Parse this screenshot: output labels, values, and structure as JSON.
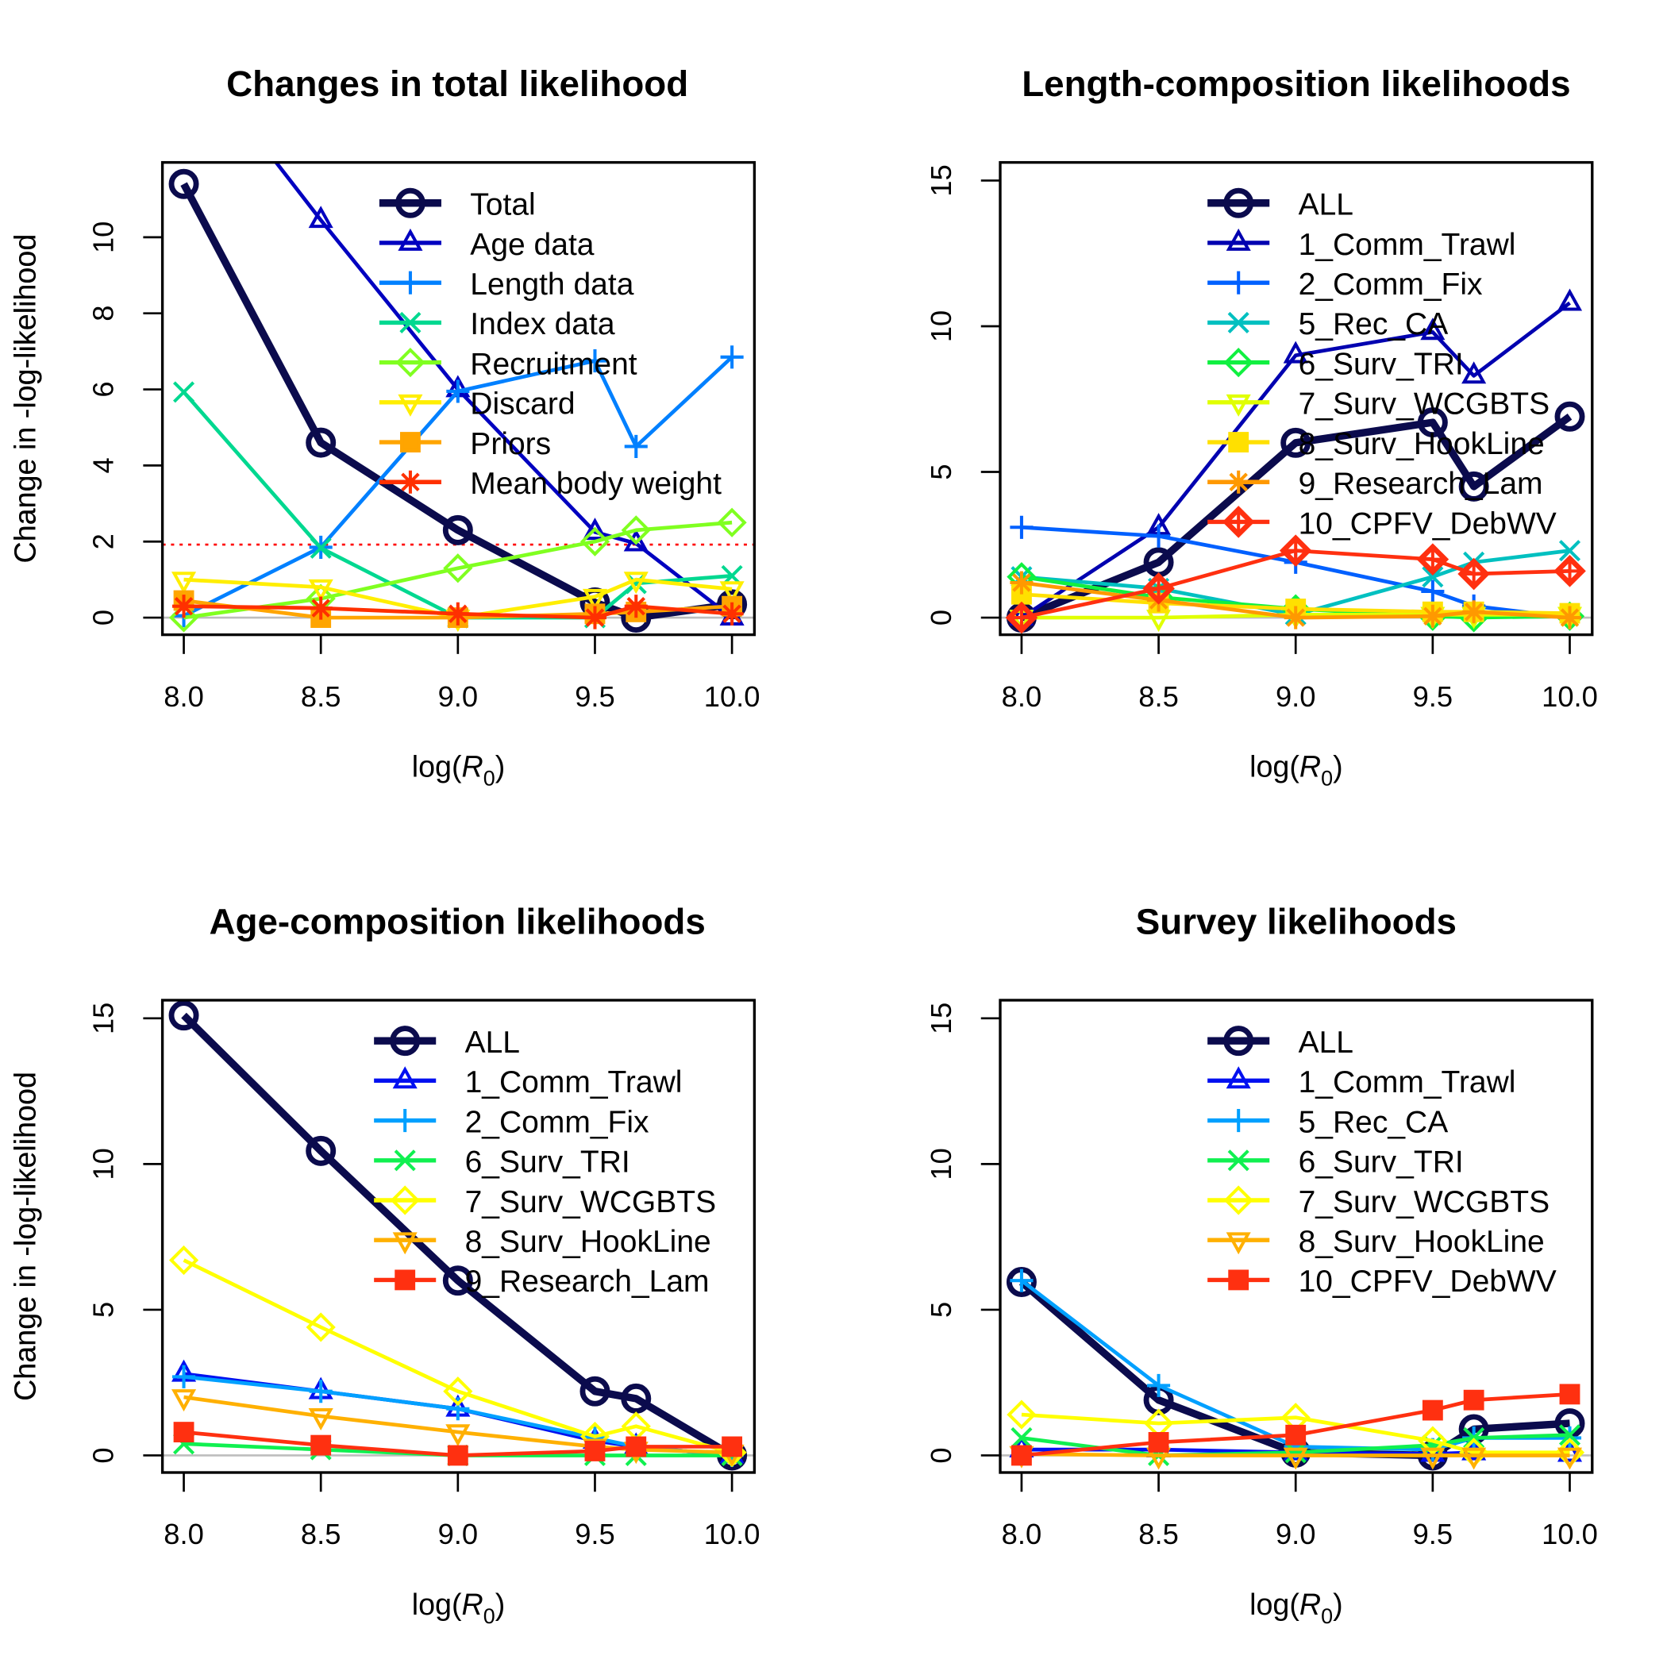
{
  "chart_data": [
    {
      "type": "line",
      "title": "Changes in total likelihood",
      "xlabel": "log(R0)",
      "ylabel": "Change in -log-likelihood",
      "x": [
        8.0,
        8.5,
        9.0,
        9.5,
        9.65,
        10.0
      ],
      "xticks": [
        "8.0",
        "8.5",
        "9.0",
        "9.5",
        "10.0"
      ],
      "yticks": [
        "0",
        "2",
        "4",
        "6",
        "8",
        "10"
      ],
      "ylim": [
        -0.5,
        12
      ],
      "reference_line": 1.92,
      "legend": "top-right",
      "series": [
        {
          "name": "Total",
          "color": "#0b0b4d",
          "marker": "circle",
          "values": [
            11.4,
            4.6,
            2.3,
            0.4,
            0.0,
            0.35
          ]
        },
        {
          "name": "Age data",
          "color": "#0000c0",
          "marker": "triangle",
          "values": [
            15.1,
            10.45,
            6.0,
            2.25,
            1.95,
            0.0
          ]
        },
        {
          "name": "Length data",
          "color": "#0080ff",
          "marker": "plus",
          "values": [
            0.05,
            1.85,
            5.95,
            6.75,
            4.5,
            6.85
          ]
        },
        {
          "name": "Index data",
          "color": "#00d890",
          "marker": "x",
          "values": [
            5.93,
            1.83,
            0.0,
            0.0,
            0.9,
            1.1
          ]
        },
        {
          "name": "Recruitment",
          "color": "#80ff20",
          "marker": "diamond",
          "values": [
            0.0,
            0.5,
            1.3,
            2.0,
            2.3,
            2.5
          ]
        },
        {
          "name": "Discard",
          "color": "#ffee00",
          "marker": "down-triangle",
          "values": [
            1.0,
            0.8,
            0.0,
            0.55,
            1.0,
            0.75
          ]
        },
        {
          "name": "Priors",
          "color": "#ffa500",
          "marker": "square",
          "values": [
            0.45,
            0.0,
            0.0,
            0.1,
            0.15,
            0.3
          ]
        },
        {
          "name": "Mean body weight",
          "color": "#ff3000",
          "marker": "asterisk",
          "values": [
            0.3,
            0.25,
            0.1,
            0.0,
            0.3,
            0.1
          ]
        }
      ]
    },
    {
      "type": "line",
      "title": "Length-composition likelihoods",
      "xlabel": "log(R0)",
      "ylabel": "Change in -log-likelihood",
      "x": [
        8.0,
        8.5,
        9.0,
        9.5,
        9.65,
        10.0
      ],
      "xticks": [
        "8.0",
        "8.5",
        "9.0",
        "9.5",
        "10.0"
      ],
      "yticks": [
        "0",
        "5",
        "10",
        "15"
      ],
      "ylim": [
        -0.6,
        15.6
      ],
      "legend": "top-right",
      "series": [
        {
          "name": "ALL",
          "color": "#0b0b4d",
          "marker": "circle",
          "values": [
            0.0,
            1.9,
            6.0,
            6.7,
            4.5,
            6.9
          ]
        },
        {
          "name": "1_Comm_Trawl",
          "color": "#0000b0",
          "marker": "triangle",
          "values": [
            0.0,
            3.1,
            9.0,
            9.8,
            8.3,
            10.8
          ]
        },
        {
          "name": "2_Comm_Fix",
          "color": "#0060ff",
          "marker": "plus",
          "values": [
            3.1,
            2.8,
            1.9,
            0.9,
            0.4,
            0.0
          ]
        },
        {
          "name": "5_Rec_CA",
          "color": "#00c0c0",
          "marker": "x",
          "values": [
            1.4,
            1.0,
            0.1,
            1.4,
            1.9,
            2.3
          ]
        },
        {
          "name": "6_Surv_TRI",
          "color": "#10f040",
          "marker": "diamond",
          "values": [
            1.4,
            0.7,
            0.3,
            0.05,
            0.0,
            0.05
          ]
        },
        {
          "name": "7_Surv_WCGBTS",
          "color": "#e0ff00",
          "marker": "down-triangle",
          "values": [
            0.0,
            0.0,
            0.1,
            0.1,
            0.1,
            0.1
          ]
        },
        {
          "name": "8_Surv_HookLine",
          "color": "#ffe000",
          "marker": "square",
          "values": [
            0.8,
            0.5,
            0.3,
            0.2,
            0.2,
            0.15
          ]
        },
        {
          "name": "9_Research_Lam",
          "color": "#ff9900",
          "marker": "asterisk",
          "values": [
            1.2,
            0.6,
            0.0,
            0.05,
            0.2,
            0.0
          ]
        },
        {
          "name": "10_CPFV_DebWV",
          "color": "#ff3010",
          "marker": "diamond-plus",
          "values": [
            0.0,
            1.0,
            2.3,
            2.0,
            1.5,
            1.6
          ]
        }
      ]
    },
    {
      "type": "line",
      "title": "Age-composition likelihoods",
      "xlabel": "log(R0)",
      "ylabel": "Change in -log-likelihood",
      "x": [
        8.0,
        8.5,
        9.0,
        9.5,
        9.65,
        10.0
      ],
      "xticks": [
        "8.0",
        "8.5",
        "9.0",
        "9.5",
        "10.0"
      ],
      "yticks": [
        "0",
        "5",
        "10",
        "15"
      ],
      "ylim": [
        -0.6,
        15.6
      ],
      "legend": "top-right",
      "series": [
        {
          "name": "ALL",
          "color": "#0b0b4d",
          "marker": "circle",
          "values": [
            15.1,
            10.45,
            6.0,
            2.2,
            1.95,
            0.0
          ]
        },
        {
          "name": "1_Comm_Trawl",
          "color": "#0010f0",
          "marker": "triangle",
          "values": [
            2.8,
            2.2,
            1.6,
            0.5,
            0.3,
            0.0
          ]
        },
        {
          "name": "2_Comm_Fix",
          "color": "#00a0ff",
          "marker": "plus",
          "values": [
            2.7,
            2.2,
            1.6,
            0.6,
            0.3,
            0.0
          ]
        },
        {
          "name": "6_Surv_TRI",
          "color": "#10f050",
          "marker": "x",
          "values": [
            0.4,
            0.2,
            0.0,
            0.0,
            0.0,
            0.0
          ]
        },
        {
          "name": "7_Surv_WCGBTS",
          "color": "#ffff00",
          "marker": "diamond",
          "values": [
            6.7,
            4.4,
            2.2,
            0.65,
            1.0,
            0.1
          ]
        },
        {
          "name": "8_Surv_HookLine",
          "color": "#ffb000",
          "marker": "down-triangle",
          "values": [
            2.0,
            1.35,
            0.8,
            0.3,
            0.2,
            0.1
          ]
        },
        {
          "name": "9_Research_Lam",
          "color": "#ff3010",
          "marker": "square",
          "values": [
            0.8,
            0.35,
            0.0,
            0.15,
            0.3,
            0.3
          ]
        }
      ]
    },
    {
      "type": "line",
      "title": "Survey likelihoods",
      "xlabel": "log(R0)",
      "ylabel": "Change in -log-likelihood",
      "x": [
        8.0,
        8.5,
        9.0,
        9.5,
        9.65,
        10.0
      ],
      "xticks": [
        "8.0",
        "8.5",
        "9.0",
        "9.5",
        "10.0"
      ],
      "yticks": [
        "0",
        "5",
        "10",
        "15"
      ],
      "ylim": [
        -0.6,
        15.6
      ],
      "legend": "top-right",
      "series": [
        {
          "name": "ALL",
          "color": "#0b0b4d",
          "marker": "circle",
          "values": [
            5.95,
            1.9,
            0.1,
            0.0,
            0.9,
            1.1
          ]
        },
        {
          "name": "1_Comm_Trawl",
          "color": "#0010f0",
          "marker": "triangle",
          "values": [
            0.2,
            0.2,
            0.1,
            0.05,
            0.1,
            0.05
          ]
        },
        {
          "name": "5_Rec_CA",
          "color": "#00a0ff",
          "marker": "plus",
          "values": [
            6.0,
            2.4,
            0.3,
            0.2,
            0.6,
            0.6
          ]
        },
        {
          "name": "6_Surv_TRI",
          "color": "#10f050",
          "marker": "x",
          "values": [
            0.6,
            0.0,
            0.1,
            0.35,
            0.6,
            0.7
          ]
        },
        {
          "name": "7_Surv_WCGBTS",
          "color": "#ffff00",
          "marker": "diamond",
          "values": [
            1.4,
            1.1,
            1.3,
            0.5,
            0.1,
            0.1
          ]
        },
        {
          "name": "8_Surv_HookLine",
          "color": "#ffb000",
          "marker": "down-triangle",
          "values": [
            0.05,
            0.0,
            0.0,
            0.0,
            0.0,
            0.0
          ]
        },
        {
          "name": "10_CPFV_DebWV",
          "color": "#ff3010",
          "marker": "square",
          "values": [
            0.0,
            0.45,
            0.7,
            1.55,
            1.9,
            2.1
          ]
        }
      ]
    }
  ]
}
